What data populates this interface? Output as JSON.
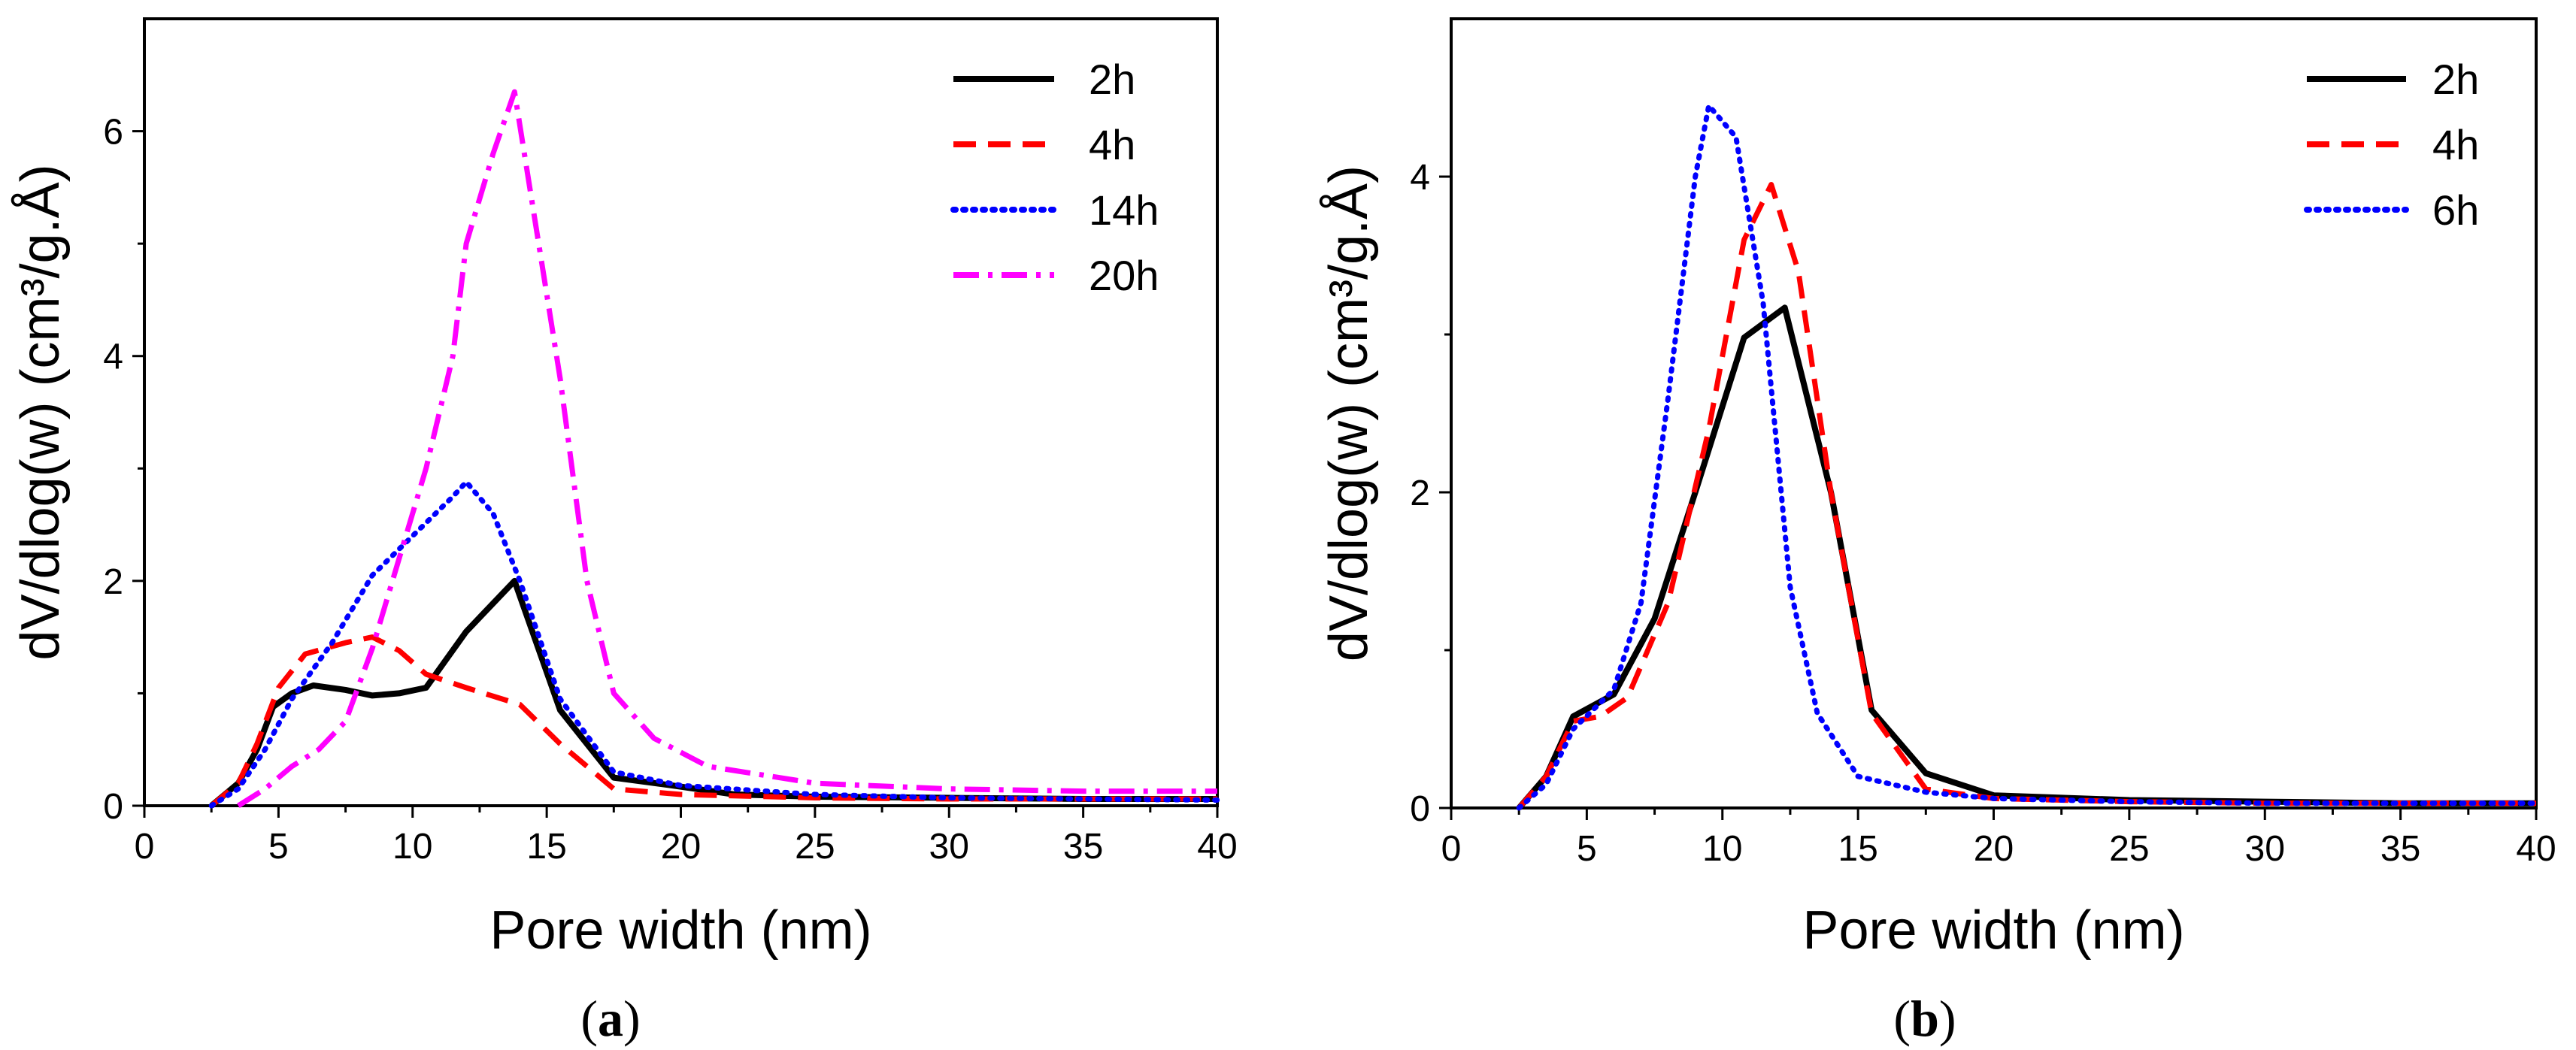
{
  "chart_data": [
    {
      "type": "line",
      "panel": "a",
      "panel_label": "a",
      "xlabel": "Pore width (nm)",
      "ylabel": "dV/dlog(w) (cm³/g.Å)",
      "xlim": [
        0,
        40
      ],
      "ylim": [
        0,
        7
      ],
      "xticks": [
        0,
        5,
        10,
        15,
        20,
        25,
        30,
        35,
        40
      ],
      "yticks": [
        0,
        2,
        4,
        6
      ],
      "grid": false,
      "legend_position": "top-right",
      "series": [
        {
          "name": "2h",
          "color": "#000000",
          "style": "solid",
          "x": [
            2.5,
            3.5,
            4.2,
            4.8,
            5.5,
            6.3,
            7.5,
            8.5,
            9.5,
            10.5,
            12.0,
            13.8,
            15.5,
            17.5,
            20,
            22,
            25,
            30,
            35,
            40
          ],
          "y": [
            0,
            0.2,
            0.5,
            0.88,
            1.0,
            1.07,
            1.03,
            0.98,
            1.0,
            1.05,
            1.55,
            2.0,
            0.85,
            0.25,
            0.17,
            0.1,
            0.08,
            0.07,
            0.06,
            0.06
          ]
        },
        {
          "name": "4h",
          "color": "#ff0000",
          "style": "dashed",
          "x": [
            2.5,
            3.5,
            4.2,
            5.0,
            6.0,
            7.5,
            8.5,
            9.5,
            10.5,
            12.0,
            14.0,
            15.5,
            17.5,
            20,
            25,
            30,
            35,
            40
          ],
          "y": [
            0,
            0.2,
            0.55,
            1.05,
            1.35,
            1.45,
            1.5,
            1.38,
            1.17,
            1.05,
            0.9,
            0.55,
            0.15,
            0.1,
            0.07,
            0.06,
            0.06,
            0.06
          ]
        },
        {
          "name": "14h",
          "color": "#0000ff",
          "style": "dotted",
          "x": [
            2.5,
            3.5,
            4.5,
            5.5,
            7.0,
            8.5,
            10.0,
            11.5,
            12.0,
            13.0,
            14.0,
            15.5,
            17.5,
            20,
            25,
            30,
            35,
            40
          ],
          "y": [
            0,
            0.15,
            0.5,
            0.95,
            1.45,
            2.05,
            2.4,
            2.75,
            2.88,
            2.6,
            2.0,
            0.95,
            0.3,
            0.18,
            0.1,
            0.07,
            0.06,
            0.05
          ]
        },
        {
          "name": "20h",
          "color": "#ff00ff",
          "style": "dashdot",
          "x": [
            3.5,
            4.5,
            5.5,
            6.5,
            7.5,
            8.5,
            9.5,
            10.5,
            11.5,
            12.0,
            13.0,
            13.8,
            14.5,
            15.5,
            16.5,
            17.5,
            19.0,
            21.0,
            25,
            30,
            35,
            40
          ],
          "y": [
            0,
            0.15,
            0.35,
            0.5,
            0.75,
            1.4,
            2.2,
            3.0,
            4.0,
            5.0,
            5.8,
            6.35,
            5.3,
            3.8,
            2.0,
            1.0,
            0.6,
            0.35,
            0.2,
            0.15,
            0.13,
            0.13
          ]
        }
      ]
    },
    {
      "type": "line",
      "panel": "b",
      "panel_label": "b",
      "xlabel": "Pore width (nm)",
      "ylabel": "dV/dlog(w) (cm³/g.Å)",
      "xlim": [
        0,
        40
      ],
      "ylim": [
        0,
        5
      ],
      "xticks": [
        0,
        5,
        10,
        15,
        20,
        25,
        30,
        35,
        40
      ],
      "yticks": [
        0,
        2,
        4
      ],
      "grid": false,
      "legend_position": "top-right",
      "series": [
        {
          "name": "2h",
          "color": "#000000",
          "style": "solid",
          "x": [
            2.5,
            3.5,
            4.5,
            6.0,
            7.5,
            9.0,
            10.8,
            12.3,
            14.0,
            15.5,
            17.5,
            20,
            25,
            30,
            35,
            40
          ],
          "y": [
            0,
            0.2,
            0.58,
            0.72,
            1.2,
            2.0,
            2.98,
            3.17,
            2.0,
            0.62,
            0.22,
            0.08,
            0.05,
            0.04,
            0.03,
            0.03
          ]
        },
        {
          "name": "4h",
          "color": "#ff0000",
          "style": "dashed",
          "x": [
            2.5,
            3.5,
            4.5,
            5.5,
            6.5,
            8.0,
            9.5,
            10.8,
            11.8,
            12.8,
            14.0,
            15.5,
            17.5,
            20,
            25,
            30,
            35,
            40
          ],
          "y": [
            0,
            0.2,
            0.55,
            0.58,
            0.7,
            1.3,
            2.4,
            3.6,
            3.95,
            3.4,
            2.0,
            0.6,
            0.12,
            0.06,
            0.04,
            0.03,
            0.03,
            0.03
          ]
        },
        {
          "name": "6h",
          "color": "#0000ff",
          "style": "dotted",
          "x": [
            2.5,
            3.5,
            4.5,
            6.0,
            7.0,
            8.0,
            9.0,
            9.5,
            10.5,
            11.5,
            12.5,
            13.5,
            15.0,
            17.5,
            20,
            25,
            30,
            35,
            40
          ],
          "y": [
            0,
            0.15,
            0.5,
            0.75,
            1.3,
            2.6,
            4.0,
            4.45,
            4.25,
            3.2,
            1.4,
            0.6,
            0.2,
            0.1,
            0.06,
            0.04,
            0.03,
            0.03,
            0.03
          ]
        }
      ]
    }
  ]
}
